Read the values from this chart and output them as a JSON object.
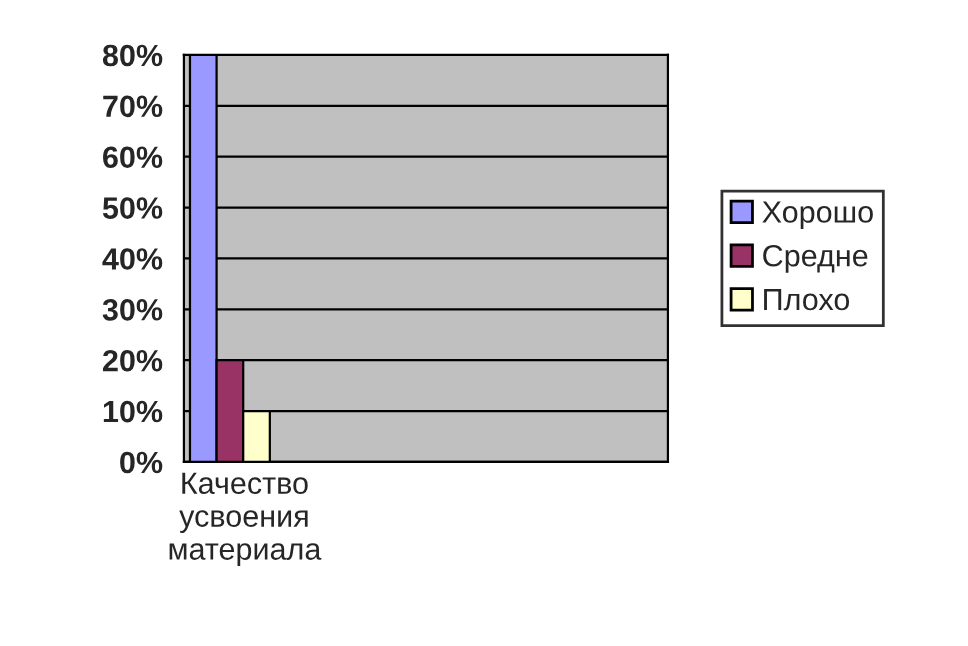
{
  "chart_data": {
    "type": "bar",
    "categories": [
      "Качество усвоения материала",
      null,
      null,
      null
    ],
    "series": [
      {
        "name": "Хорошо",
        "color": "#9999ff",
        "values": [
          80,
          null,
          null,
          null
        ]
      },
      {
        "name": "Средне",
        "color": "#993366",
        "values": [
          20,
          null,
          null,
          null
        ]
      },
      {
        "name": "Плохо",
        "color": "#ffffcc",
        "values": [
          10,
          null,
          null,
          null
        ]
      }
    ],
    "ylim": [
      0,
      80
    ],
    "yticks": [
      {
        "value": 0,
        "label": "0%"
      },
      {
        "value": 10,
        "label": "10%"
      },
      {
        "value": 20,
        "label": "20%"
      },
      {
        "value": 30,
        "label": "30%"
      },
      {
        "value": 40,
        "label": "40%"
      },
      {
        "value": 50,
        "label": "50%"
      },
      {
        "value": 60,
        "label": "60%"
      },
      {
        "value": 70,
        "label": "70%"
      },
      {
        "value": 80,
        "label": "80%"
      }
    ],
    "grid": "y",
    "legend": "right"
  }
}
